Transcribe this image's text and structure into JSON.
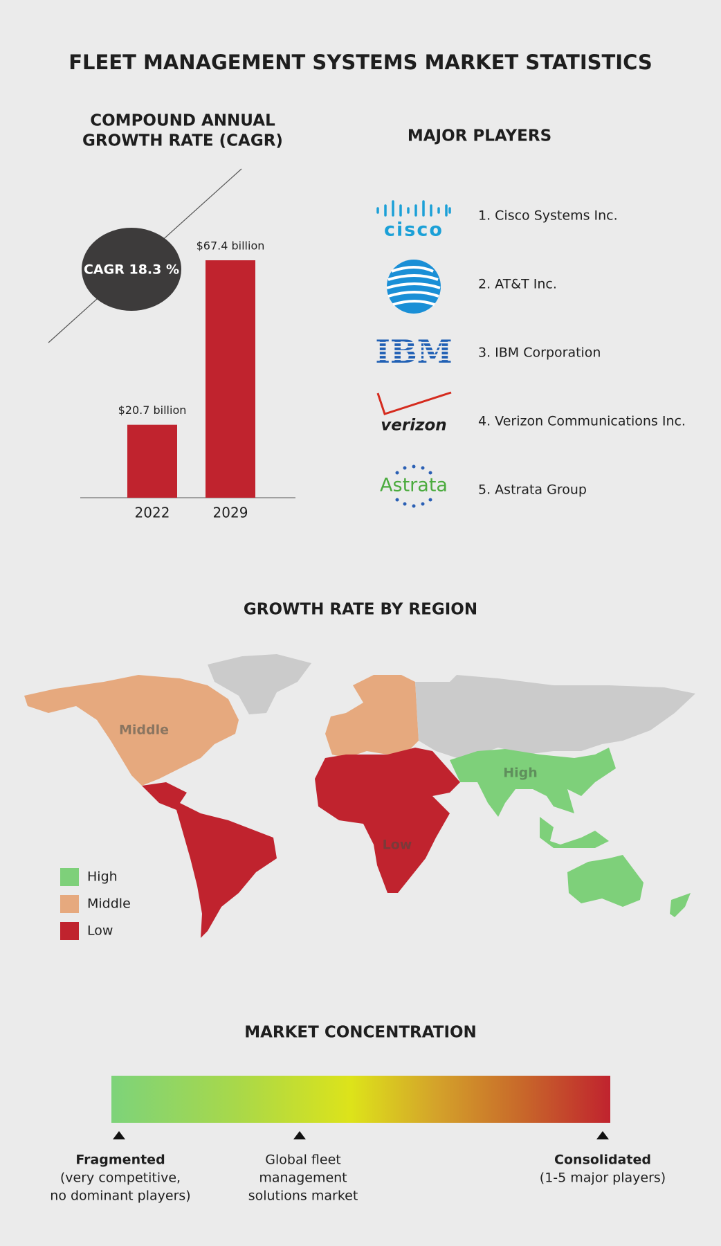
{
  "title": "FLEET MANAGEMENT SYSTEMS MARKET STATISTICS",
  "chart_data": {
    "type": "bar",
    "title": [
      "COMPOUND ANNUAL",
      "GROWTH RATE (CAGR)"
    ],
    "annotation": "CAGR 18.3 %",
    "categories": [
      "2022",
      "2029"
    ],
    "values": [
      20.7,
      67.4
    ],
    "value_labels": [
      "$20.7 billion",
      "$67.4 billion"
    ],
    "color": "#c0232e"
  },
  "players": {
    "title": "MAJOR PLAYERS",
    "items": [
      {
        "logo": "cisco",
        "name": "1. Cisco Systems Inc."
      },
      {
        "logo": null,
        "name": "2. AT&T Inc."
      },
      {
        "logo": "IBM",
        "name": "3. IBM Corporation"
      },
      {
        "logo": "verizon",
        "name": "4. Verizon Communications Inc."
      },
      {
        "logo": "Astrata",
        "name": "5. Astrata Group"
      }
    ]
  },
  "region": {
    "title": "GROWTH RATE BY REGION",
    "map_labels": [
      "Middle",
      "High",
      "Low"
    ],
    "legend": [
      {
        "label": "High",
        "color": "#7ed07a"
      },
      {
        "label": "Middle",
        "color": "#e6a97e"
      },
      {
        "label": "Low",
        "color": "#c0232e"
      }
    ]
  },
  "concentration": {
    "title": "MARKET CONCENTRATION",
    "left": [
      "Fragmented",
      "(very competitive,",
      "no dominant players)"
    ],
    "middle": [
      "Global fleet",
      "management",
      "solutions market"
    ],
    "right": [
      "Consolidated",
      "(1-5 major players)"
    ]
  }
}
